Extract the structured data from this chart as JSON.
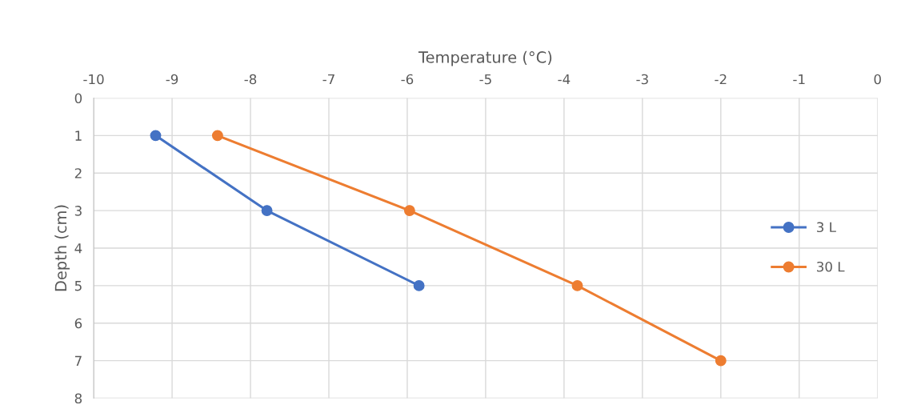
{
  "chart_data": {
    "type": "line",
    "xlabel": "Temperature (°C)",
    "ylabel": "Depth (cm)",
    "xlim": [
      -10,
      0
    ],
    "xticks": [
      -10,
      -9,
      -8,
      -7,
      -6,
      -5,
      -4,
      -3,
      -2,
      -1,
      0
    ],
    "ylim": [
      8,
      0
    ],
    "yticks": [
      0,
      1,
      2,
      3,
      4,
      5,
      6,
      7,
      8
    ],
    "grid": true,
    "legend": "right",
    "marker": "circle",
    "line_style": "solid",
    "series": [
      {
        "name": "3 L",
        "color": "#4472c4",
        "x": [
          -9.21,
          -7.79,
          -5.85
        ],
        "values": [
          1,
          3,
          5
        ]
      },
      {
        "name": "30 L",
        "color": "#ed7d31",
        "x": [
          -8.42,
          -5.97,
          -3.83,
          -2.0
        ],
        "values": [
          1,
          3,
          5,
          7
        ]
      }
    ]
  }
}
